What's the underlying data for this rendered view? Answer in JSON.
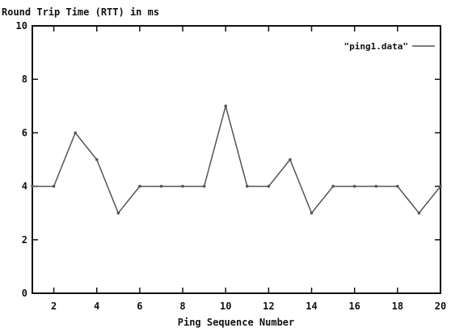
{
  "chart_data": {
    "type": "line",
    "title": "Round Trip Time (RTT) in ms",
    "xlabel": "Ping Sequence Number",
    "ylabel": "",
    "xlim": [
      1,
      20
    ],
    "ylim": [
      0,
      10
    ],
    "x_ticks": [
      2,
      4,
      6,
      8,
      10,
      12,
      14,
      16,
      18,
      20
    ],
    "y_ticks": [
      0,
      2,
      4,
      6,
      8,
      10
    ],
    "grid": false,
    "legend_position": "top-right",
    "series": [
      {
        "name": "\"ping1.data\"",
        "x": [
          1,
          2,
          3,
          4,
          5,
          6,
          7,
          8,
          9,
          10,
          11,
          12,
          13,
          14,
          15,
          16,
          17,
          18,
          19,
          20
        ],
        "values": [
          4,
          4,
          6,
          5,
          3,
          4,
          4,
          4,
          4,
          7,
          4,
          4,
          5,
          3,
          4,
          4,
          4,
          4,
          3,
          4
        ]
      }
    ]
  },
  "colors": {
    "line": "#555555",
    "axis": "#111111",
    "background": "#ffffff"
  }
}
